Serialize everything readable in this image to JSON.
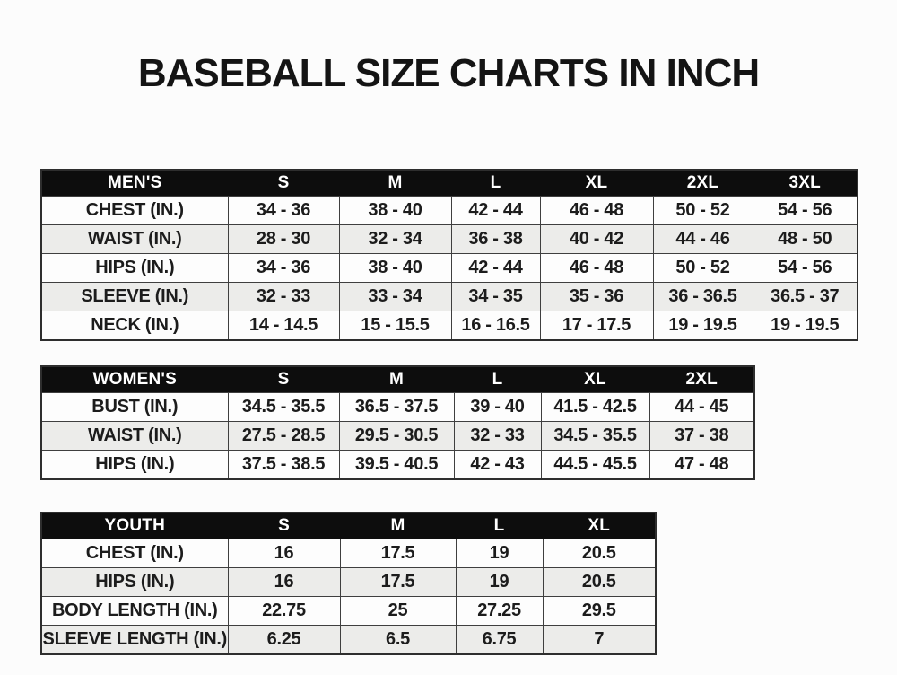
{
  "title": "BASEBALL SIZE CHARTS IN INCH",
  "colors": {
    "page_background": "#fcfcfc",
    "header_background": "#0d0d0d",
    "header_text": "#ffffff",
    "row_white": "#fdfdfd",
    "row_stripe": "#ececea",
    "grid_border": "#3f3f3f",
    "cell_text": "#1c1c1c",
    "title_text": "#141414"
  },
  "chart_data": [
    {
      "type": "table",
      "title": "MEN'S",
      "columns": [
        "MEN'S",
        "S",
        "M",
        "L",
        "XL",
        "2XL",
        "3XL"
      ],
      "rows": [
        [
          "CHEST (IN.)",
          "34 - 36",
          "38 - 40",
          "42 - 44",
          "46 - 48",
          "50 - 52",
          "54 - 56"
        ],
        [
          "WAIST (IN.)",
          "28 - 30",
          "32 - 34",
          "36 - 38",
          "40 - 42",
          "44 - 46",
          "48 - 50"
        ],
        [
          "HIPS (IN.)",
          "34 - 36",
          "38 - 40",
          "42 - 44",
          "46 - 48",
          "50 - 52",
          "54 - 56"
        ],
        [
          "SLEEVE (IN.)",
          "32 - 33",
          "33 - 34",
          "34 - 35",
          "35 - 36",
          "36 - 36.5",
          "36.5 - 37"
        ],
        [
          "NECK (IN.)",
          "14 - 14.5",
          "15 - 15.5",
          "16 - 16.5",
          "17 - 17.5",
          "19 - 19.5",
          "19 - 19.5"
        ]
      ]
    },
    {
      "type": "table",
      "title": "WOMEN'S",
      "columns": [
        "WOMEN'S",
        "S",
        "M",
        "L",
        "XL",
        "2XL"
      ],
      "rows": [
        [
          "BUST (IN.)",
          "34.5 - 35.5",
          "36.5 - 37.5",
          "39 - 40",
          "41.5 - 42.5",
          "44 - 45"
        ],
        [
          "WAIST (IN.)",
          "27.5 - 28.5",
          "29.5 - 30.5",
          "32 - 33",
          "34.5 - 35.5",
          "37 - 38"
        ],
        [
          "HIPS (IN.)",
          "37.5 - 38.5",
          "39.5 - 40.5",
          "42 - 43",
          "44.5 - 45.5",
          "47 - 48"
        ]
      ]
    },
    {
      "type": "table",
      "title": "YOUTH",
      "columns": [
        "YOUTH",
        "S",
        "M",
        "L",
        "XL"
      ],
      "rows": [
        [
          "CHEST (IN.)",
          "16",
          "17.5",
          "19",
          "20.5"
        ],
        [
          "HIPS (IN.)",
          "16",
          "17.5",
          "19",
          "20.5"
        ],
        [
          "BODY LENGTH (IN.)",
          "22.75",
          "25",
          "27.25",
          "29.5"
        ],
        [
          "SLEEVE LENGTH (IN.)",
          "6.25",
          "6.5",
          "6.75",
          "7"
        ]
      ]
    }
  ]
}
